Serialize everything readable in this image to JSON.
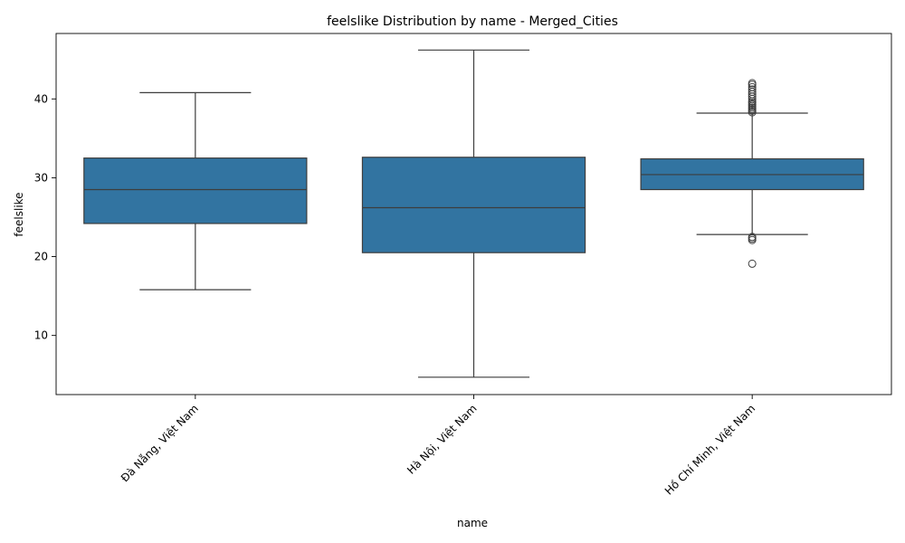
{
  "chart_data": {
    "type": "box",
    "title": "feelslike Distribution by name - Merged_Cities",
    "xlabel": "name",
    "ylabel": "feelslike",
    "ylim": [
      2.5,
      48.3
    ],
    "yticks": [
      10,
      20,
      30,
      40
    ],
    "grid": false,
    "colors": {
      "box_fill": "#3274a1",
      "line": "#3d3d3d"
    },
    "categories": [
      "Đà Nẵng, Việt Nam",
      "Hà Nội, Việt Nam",
      "Hồ Chí Minh, Việt Nam"
    ],
    "boxes": [
      {
        "category": "Đà Nẵng, Việt Nam",
        "whisker_low": 15.8,
        "q1": 24.2,
        "median": 28.5,
        "q3": 32.5,
        "whisker_high": 40.8,
        "outliers": []
      },
      {
        "category": "Hà Nội, Việt Nam",
        "whisker_low": 4.7,
        "q1": 20.5,
        "median": 26.2,
        "q3": 32.6,
        "whisker_high": 46.2,
        "outliers": []
      },
      {
        "category": "Hồ Chí Minh, Việt Nam",
        "whisker_low": 22.8,
        "q1": 28.5,
        "median": 30.4,
        "q3": 32.4,
        "whisker_high": 38.2,
        "outliers": [
          19.1,
          22.1,
          22.3,
          22.5,
          38.3,
          38.5,
          38.7,
          38.9,
          39.1,
          39.3,
          39.5,
          39.7,
          40.0,
          40.3,
          40.6,
          40.9,
          41.2,
          41.5,
          41.8,
          42.0
        ]
      }
    ]
  }
}
